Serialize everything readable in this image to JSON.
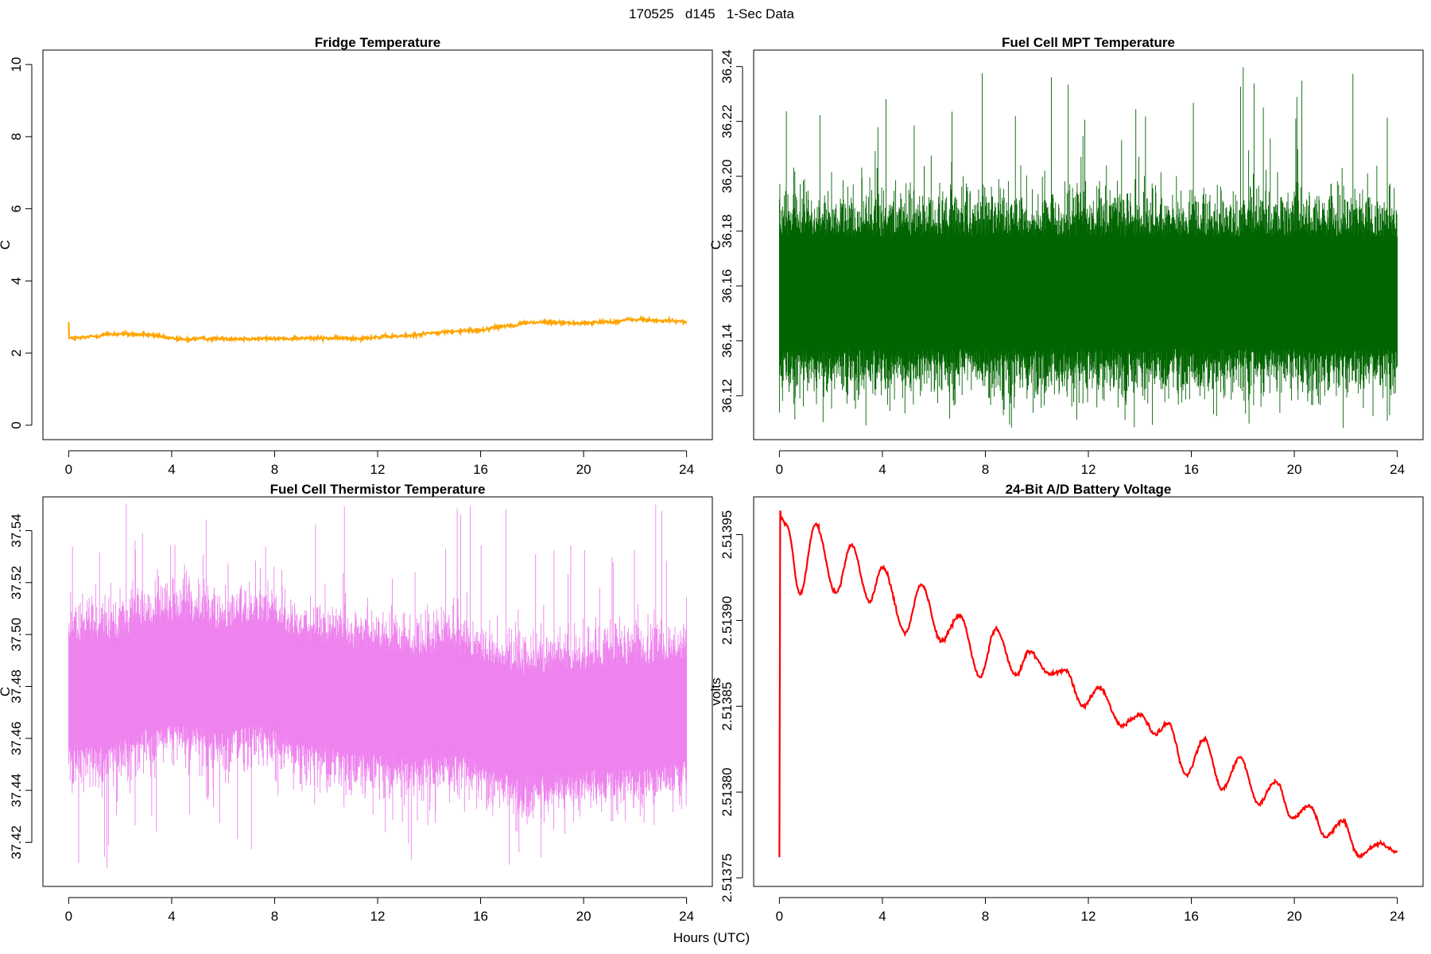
{
  "figure": {
    "suptitle": "170525   d145   1-Sec Data",
    "xlabel": "Hours (UTC)"
  },
  "chart_data": [
    {
      "type": "line",
      "title": "Fridge Temperature",
      "xlabel": "",
      "ylabel": "C",
      "xlim": [
        -1,
        25
      ],
      "ylim": [
        -0.4,
        10.4
      ],
      "xticks": [
        0,
        4,
        8,
        12,
        16,
        20,
        24
      ],
      "yticks": [
        0,
        2,
        4,
        6,
        8,
        10
      ],
      "color": "#FFA500",
      "style": "smooth",
      "x": [
        0,
        0.02,
        0.05,
        0.5,
        1,
        1.5,
        2,
        3,
        4,
        4.5,
        5,
        6,
        7,
        8,
        9,
        10,
        11,
        12,
        13,
        14,
        15,
        16,
        16.5,
        17,
        18,
        19,
        20,
        21,
        22,
        23,
        24
      ],
      "y": [
        2.86,
        2.42,
        2.41,
        2.42,
        2.47,
        2.52,
        2.53,
        2.51,
        2.41,
        2.37,
        2.4,
        2.4,
        2.4,
        2.4,
        2.41,
        2.41,
        2.41,
        2.44,
        2.47,
        2.55,
        2.6,
        2.64,
        2.71,
        2.76,
        2.85,
        2.85,
        2.83,
        2.87,
        2.93,
        2.9,
        2.87
      ]
    },
    {
      "type": "line",
      "title": "Fuel Cell MPT Temperature",
      "xlabel": "",
      "ylabel": "C",
      "xlim": [
        -1,
        25
      ],
      "ylim": [
        36.104,
        36.246
      ],
      "xticks": [
        0,
        4,
        8,
        12,
        16,
        20,
        24
      ],
      "yticks": [
        36.12,
        36.14,
        36.16,
        36.18,
        36.2,
        36.22,
        36.24
      ],
      "color": "#006400",
      "style": "noise",
      "series": [
        {
          "x": [
            0,
            4,
            8,
            12,
            16,
            20,
            24
          ],
          "center": [
            36.157,
            36.157,
            36.157,
            36.157,
            36.157,
            36.157,
            36.157
          ],
          "dense_band": [
            36.132,
            36.183
          ],
          "spike_range": [
            36.108,
            36.24
          ]
        }
      ]
    },
    {
      "type": "line",
      "title": "Fuel Cell Thermistor Temperature",
      "xlabel": "",
      "ylabel": "C",
      "xlim": [
        -1,
        25
      ],
      "ylim": [
        37.403,
        37.553
      ],
      "xticks": [
        0,
        4,
        8,
        12,
        16,
        20,
        24
      ],
      "yticks": [
        37.42,
        37.44,
        37.46,
        37.48,
        37.5,
        37.52,
        37.54
      ],
      "color": "#EE82EE",
      "style": "noise",
      "series": [
        {
          "x": [
            0,
            1.5,
            3,
            4.5,
            6,
            7.5,
            9,
            10.5,
            12,
            13.5,
            15,
            16.5,
            18,
            19.5,
            21,
            22.5,
            24
          ],
          "center": [
            37.479,
            37.477,
            37.484,
            37.486,
            37.482,
            37.485,
            37.478,
            37.476,
            37.474,
            37.472,
            37.474,
            37.468,
            37.465,
            37.467,
            37.468,
            37.469,
            37.471
          ],
          "dense_band_halfwidth": 0.024,
          "spike_range": [
            37.41,
            37.551
          ]
        }
      ]
    },
    {
      "type": "line",
      "title": "24-Bit A/D Battery Voltage",
      "xlabel": "",
      "ylabel": "volts",
      "xlim": [
        -1,
        25
      ],
      "ylim": [
        2.513745,
        2.513972
      ],
      "xticks": [
        0,
        4,
        8,
        12,
        16,
        20,
        24
      ],
      "yticks": [
        2.51375,
        2.5138,
        2.51385,
        2.5139,
        2.51395
      ],
      "color": "#FF0000",
      "style": "smooth",
      "x": [
        0,
        0.03,
        0.06,
        0.3,
        0.8,
        1.4,
        2.2,
        2.8,
        3.5,
        4.0,
        4.9,
        5.5,
        6.3,
        7.0,
        7.8,
        8.4,
        9.2,
        9.7,
        10.5,
        11.1,
        11.8,
        12.4,
        13.3,
        14.0,
        14.6,
        15.1,
        15.8,
        16.5,
        17.2,
        17.9,
        18.6,
        19.3,
        19.9,
        20.6,
        21.2,
        21.9,
        22.5,
        23.3,
        24.0
      ],
      "y": [
        2.513762,
        2.513964,
        2.51396,
        2.513955,
        2.513915,
        2.513956,
        2.513916,
        2.513944,
        2.513911,
        2.513931,
        2.513893,
        2.513921,
        2.513888,
        2.513903,
        2.513867,
        2.513895,
        2.513868,
        2.513882,
        2.513869,
        2.513871,
        2.51385,
        2.513861,
        2.513839,
        2.513845,
        2.513834,
        2.51384,
        2.51381,
        2.513831,
        2.513802,
        2.51382,
        2.513793,
        2.513806,
        2.513785,
        2.513792,
        2.513774,
        2.513783,
        2.513763,
        2.51377,
        2.513765
      ]
    }
  ]
}
